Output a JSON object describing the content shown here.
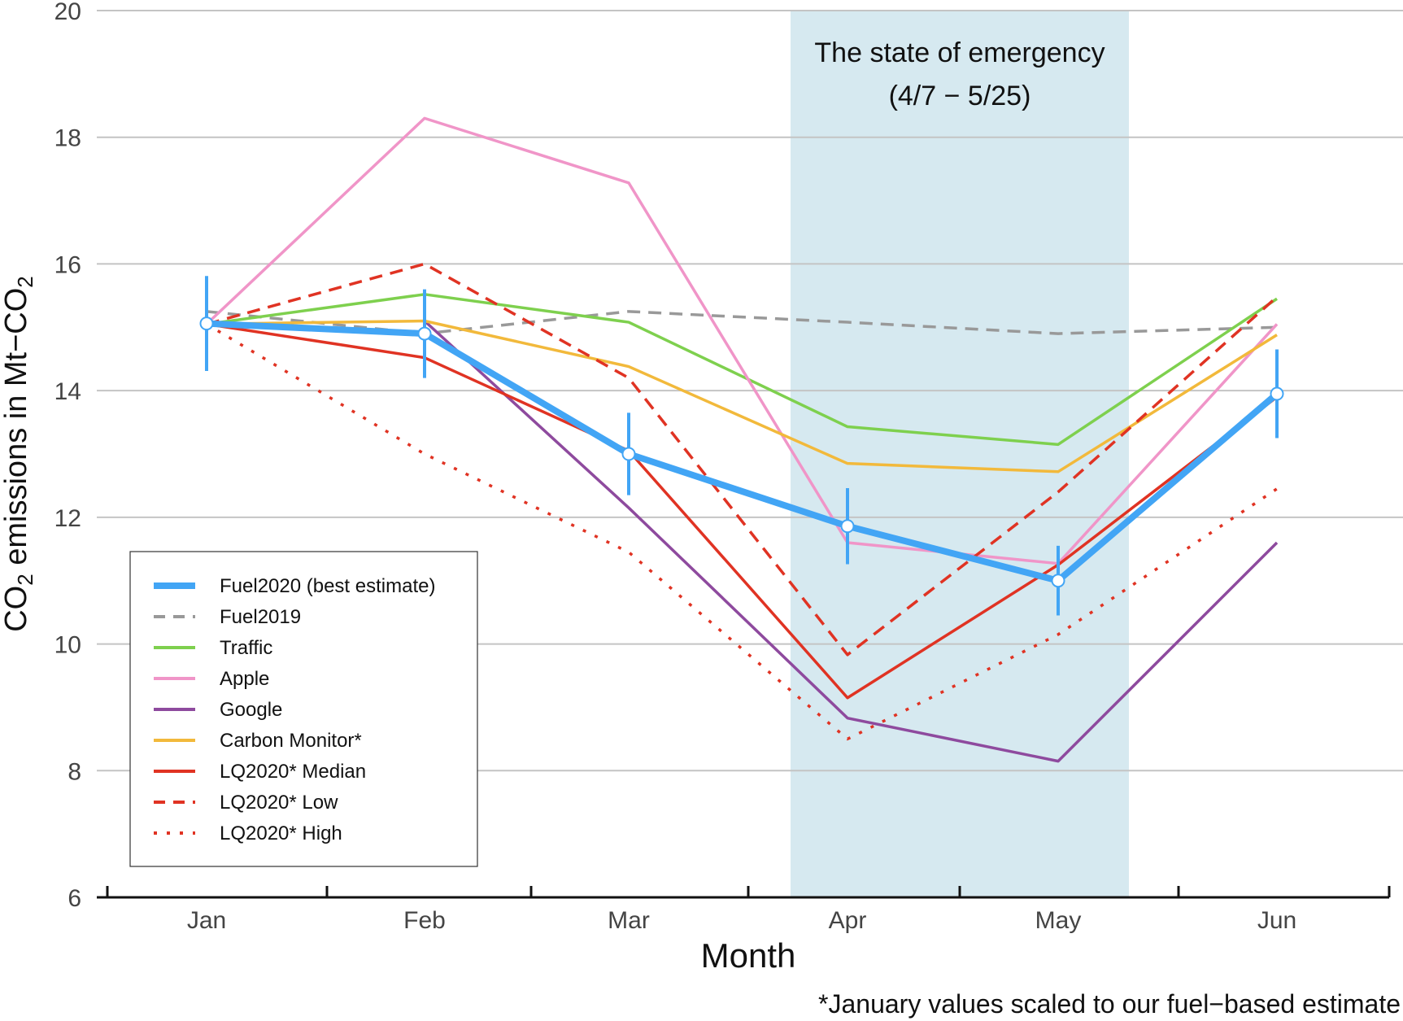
{
  "chart_data": {
    "type": "line",
    "xlabel": "Month",
    "ylabel": "CO2 emissions in Mt-CO2",
    "ylabel_parts": [
      "CO",
      "2",
      " emissions in Mt−CO",
      "2"
    ],
    "categories": [
      "Jan",
      "Feb",
      "Mar",
      "Apr",
      "May",
      "Jun"
    ],
    "ylim": [
      6,
      20
    ],
    "yticks": [
      "6",
      "8",
      "10",
      "12",
      "14",
      "16",
      "18",
      "20"
    ],
    "grid": true,
    "legend_position": "bottom-left",
    "annotation": {
      "line1": "The state of emergency",
      "line2": "(4/7 − 5/25)",
      "shaded_from": "4/7",
      "shaded_to": "5/25",
      "color": "#d6e9f0"
    },
    "footnote": "*January values scaled to our fuel−based estimate",
    "series": [
      {
        "name": "Fuel2020 (best estimate)",
        "color": "#42a5f5",
        "style": "thick",
        "values": [
          15.06,
          14.9,
          13.0,
          11.86,
          11.0,
          13.95
        ],
        "error": [
          0.75,
          0.7,
          0.65,
          0.6,
          0.55,
          0.7
        ]
      },
      {
        "name": "Fuel2019",
        "color": "#999999",
        "style": "dashed",
        "values": [
          15.25,
          14.9,
          15.25,
          15.08,
          14.9,
          15.0
        ]
      },
      {
        "name": "Traffic",
        "color": "#7ed04e",
        "style": "solid",
        "values": [
          15.05,
          15.52,
          15.08,
          13.43,
          13.15,
          15.45
        ]
      },
      {
        "name": "Apple",
        "color": "#f095c8",
        "style": "solid",
        "values": [
          15.05,
          18.3,
          17.28,
          11.6,
          11.27,
          15.05
        ]
      },
      {
        "name": "Google",
        "color": "#8e4a9e",
        "style": "solid",
        "values": [
          null,
          15.1,
          12.15,
          8.83,
          8.15,
          11.6
        ]
      },
      {
        "name": "Carbon Monitor*",
        "color": "#f2b93b",
        "style": "solid",
        "values": [
          15.05,
          15.1,
          14.38,
          12.85,
          12.72,
          14.88
        ]
      },
      {
        "name": "LQ2020* Median",
        "color": "#e03323",
        "style": "solid",
        "values": [
          15.05,
          14.52,
          13.05,
          9.15,
          11.25,
          13.9
        ]
      },
      {
        "name": "LQ2020* Low",
        "color": "#e03323",
        "style": "dashed",
        "values": [
          15.05,
          16.0,
          14.2,
          9.83,
          12.4,
          15.48
        ]
      },
      {
        "name": "LQ2020* High",
        "color": "#e03323",
        "style": "dotted",
        "values": [
          15.05,
          13.0,
          11.45,
          8.5,
          10.15,
          12.45
        ]
      }
    ]
  }
}
